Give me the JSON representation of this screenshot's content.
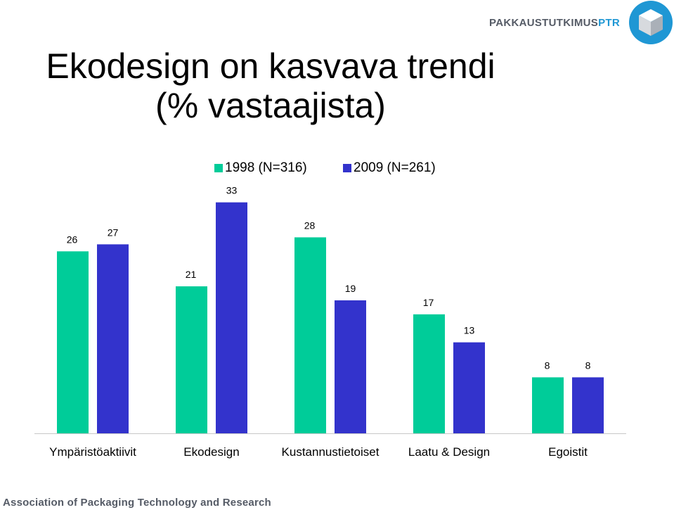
{
  "branding": {
    "name_part1": "PAKKAUSTUTKIMUS",
    "name_part2": "PTR",
    "footer": "Association of Packaging Technology and Research",
    "icon": "cube-icon",
    "color_primary": "#1f97d4",
    "color_text": "#555b66"
  },
  "chart_data": {
    "type": "bar",
    "title": "Ekodesign on kasvava trendi\n(% vastaajista)",
    "categories": [
      "Ympäristöaktiivit",
      "Ekodesign",
      "Kustannustietoiset",
      "Laatu & Design",
      "Egoistit"
    ],
    "series": [
      {
        "name": "1998 (N=316)",
        "color": "#00cc99",
        "values": [
          26,
          21,
          28,
          17,
          8
        ]
      },
      {
        "name": "2009 (N=261)",
        "color": "#3333cc",
        "values": [
          27,
          33,
          19,
          13,
          8
        ]
      }
    ],
    "xlabel": "",
    "ylabel": "",
    "grid": false,
    "legend_position": "top"
  }
}
